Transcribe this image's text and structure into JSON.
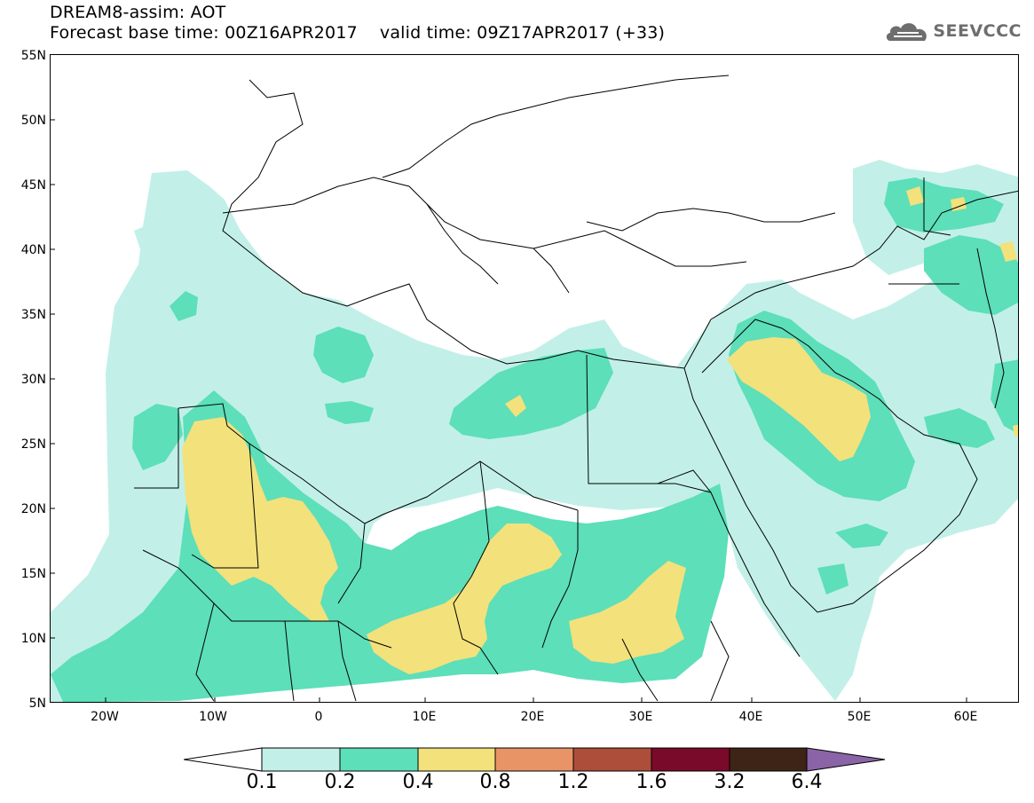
{
  "header": {
    "line1": "DREAM8-assim: AOT",
    "line2": "Forecast base time: 00Z16APR2017    valid time: 09Z17APR2017 (+33)",
    "logo_text": "SEEVCCC"
  },
  "axes": {
    "lat_labels": [
      "55N",
      "50N",
      "45N",
      "40N",
      "35N",
      "30N",
      "25N",
      "20N",
      "15N",
      "10N",
      "5N"
    ],
    "lon_labels": [
      "20W",
      "10W",
      "0",
      "10E",
      "20E",
      "30E",
      "40E",
      "50E",
      "60E"
    ]
  },
  "legend": {
    "labels": [
      "0.1",
      "0.2",
      "0.4",
      "0.8",
      "1.2",
      "1.6",
      "3.2",
      "6.4"
    ],
    "colors": [
      "#ffffff",
      "#c2f0e8",
      "#5ddfb9",
      "#f3e17c",
      "#e89467",
      "#ad4e3b",
      "#7a0a2a",
      "#3e2416",
      "#8a64a6"
    ]
  },
  "map": {
    "variable": "AOT",
    "region_lon": [
      "25W",
      "65E"
    ],
    "region_lat": [
      "5N",
      "55N"
    ],
    "aot_classes": [
      {
        "range": "0.1-0.2",
        "color": "#c2f0e8",
        "areas": [
          "North Atlantic off Iberia and Morocco",
          "Libyan Sahara",
          "Arabian Sea coast",
          "Caspian region",
          "Eastern Iran"
        ]
      },
      {
        "range": "0.2-0.4",
        "color": "#5ddfb9",
        "areas": [
          "West African Sahel",
          "Algeria",
          "Libya and Egypt",
          "Arabian Peninsula",
          "Turkmenistan and Caspian"
        ]
      },
      {
        "range": "0.4-0.8",
        "color": "#f3e17c",
        "areas": [
          "Mauritania and Mali",
          "Niger, Chad and Nigeria",
          "Sudan and Chad",
          "Iraq and Kuwait",
          "Northern Caspian",
          "Aral Sea region"
        ]
      }
    ]
  }
}
